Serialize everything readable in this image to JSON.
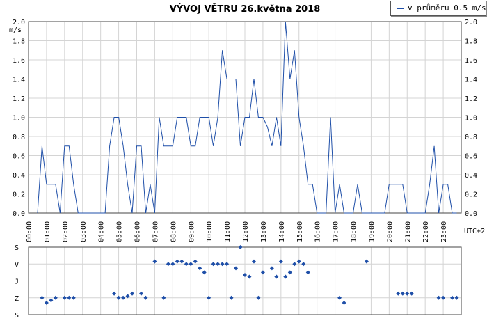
{
  "chart_data": [
    {
      "type": "line",
      "title": "VÝVOJ VĚTRU  26.května 2018",
      "ylabel": "m/s",
      "xlabel": "UTC+2",
      "ylim": [
        0,
        2.0
      ],
      "xlim": [
        0,
        24
      ],
      "yticks": [
        "0.0",
        "0.2",
        "0.4",
        "0.6",
        "0.8",
        "1.0",
        "1.2",
        "1.4",
        "1.6",
        "1.8",
        "2.0"
      ],
      "xticks": [
        "00:00",
        "01:00",
        "02:00",
        "03:00",
        "04:00",
        "05:00",
        "06:00",
        "07:00",
        "08:00",
        "09:00",
        "10:00",
        "11:00",
        "12:00",
        "13:00",
        "14:00",
        "15:00",
        "16:00",
        "17:00",
        "18:00",
        "19:00",
        "20:00",
        "21:00",
        "22:00",
        "23:00"
      ],
      "grid": true,
      "legend_position": "top-right",
      "color": "#1f4fa8",
      "series": [
        {
          "name": "v průměru 0.5 m/s",
          "x": [
            0.5,
            0.75,
            1.0,
            1.25,
            1.5,
            1.75,
            2.0,
            2.25,
            2.5,
            2.75,
            3.0,
            3.25,
            3.5,
            3.75,
            4.0,
            4.25,
            4.5,
            4.75,
            5.0,
            5.25,
            5.5,
            5.75,
            6.0,
            6.25,
            6.5,
            6.75,
            7.0,
            7.25,
            7.5,
            7.75,
            8.0,
            8.25,
            8.5,
            8.75,
            9.0,
            9.25,
            9.5,
            9.75,
            10.0,
            10.25,
            10.5,
            10.75,
            11.0,
            11.25,
            11.5,
            11.75,
            12.0,
            12.25,
            12.5,
            12.75,
            13.0,
            13.25,
            13.5,
            13.75,
            14.0,
            14.25,
            14.5,
            14.75,
            15.0,
            15.25,
            15.5,
            15.75,
            16.0,
            16.25,
            16.5,
            16.75,
            17.0,
            17.25,
            17.5,
            17.75,
            18.0,
            18.25,
            18.5,
            18.75,
            19.0,
            19.25,
            19.5,
            19.75,
            20.0,
            20.25,
            20.5,
            20.75,
            21.0,
            21.25,
            21.5,
            21.75,
            22.0,
            22.25,
            22.5,
            22.75,
            23.0,
            23.25,
            23.5,
            23.75
          ],
          "y": [
            0.0,
            0.7,
            0.3,
            0.3,
            0.3,
            0.0,
            0.7,
            0.7,
            0.3,
            0.0,
            0.0,
            0.0,
            0.0,
            0.0,
            0.0,
            0.0,
            0.7,
            1.0,
            1.0,
            0.7,
            0.3,
            0.0,
            0.7,
            0.7,
            0.0,
            0.3,
            0.0,
            1.0,
            0.7,
            0.7,
            0.7,
            1.0,
            1.0,
            1.0,
            0.7,
            0.7,
            1.0,
            1.0,
            1.0,
            0.7,
            1.0,
            1.7,
            1.4,
            1.4,
            1.4,
            0.7,
            1.0,
            1.0,
            1.4,
            1.0,
            1.0,
            0.9,
            0.7,
            1.0,
            0.7,
            2.0,
            1.4,
            1.7,
            1.0,
            0.7,
            0.3,
            0.3,
            0.0,
            0.0,
            0.0,
            1.0,
            0.0,
            0.3,
            0.0,
            0.0,
            0.0,
            0.3,
            0.0,
            0.0,
            0.0,
            0.0,
            0.0,
            0.0,
            0.3,
            0.3,
            0.3,
            0.3,
            0.0,
            0.0,
            0.0,
            0.0,
            0.0,
            0.3,
            0.7,
            0.0,
            0.3,
            0.3,
            0.0,
            0.0
          ]
        }
      ]
    },
    {
      "type": "scatter",
      "ylabel": "",
      "yticks": [
        "S",
        "V",
        "J",
        "Z",
        "S"
      ],
      "yvalues": [
        0,
        1,
        2,
        3,
        4
      ],
      "xlim": [
        0,
        24
      ],
      "grid": true,
      "color": "#1f4fa8",
      "series": [
        {
          "name": "",
          "x": [
            0.75,
            1.0,
            1.25,
            1.5,
            2.0,
            2.25,
            2.5,
            4.75,
            5.0,
            5.25,
            5.5,
            5.75,
            6.25,
            6.5,
            7.0,
            7.5,
            7.75,
            8.0,
            8.25,
            8.5,
            8.75,
            9.0,
            9.25,
            9.5,
            9.75,
            10.0,
            10.25,
            10.5,
            10.75,
            11.0,
            11.25,
            11.5,
            11.75,
            12.0,
            12.25,
            12.5,
            12.75,
            13.0,
            13.5,
            13.75,
            14.0,
            14.25,
            14.5,
            14.75,
            15.0,
            15.25,
            15.5,
            17.25,
            17.5,
            18.75,
            20.5,
            20.75,
            21.0,
            21.25,
            22.75,
            23.0,
            23.5,
            23.75
          ],
          "y": [
            3.0,
            3.3,
            3.15,
            3.0,
            3.0,
            3.0,
            3.0,
            2.75,
            3.0,
            3.0,
            2.9,
            2.75,
            2.75,
            3.0,
            0.85,
            3.0,
            1.0,
            1.0,
            0.85,
            0.85,
            1.0,
            1.0,
            0.85,
            1.25,
            1.5,
            3.0,
            1.0,
            1.0,
            1.0,
            1.0,
            3.0,
            1.25,
            0.0,
            1.65,
            1.75,
            0.85,
            3.0,
            1.5,
            1.25,
            1.75,
            0.85,
            1.75,
            1.5,
            1.0,
            0.85,
            1.0,
            1.5,
            3.0,
            3.3,
            0.85,
            2.75,
            2.75,
            2.75,
            2.75,
            3.0,
            3.0,
            3.0,
            3.0
          ]
        }
      ]
    }
  ]
}
